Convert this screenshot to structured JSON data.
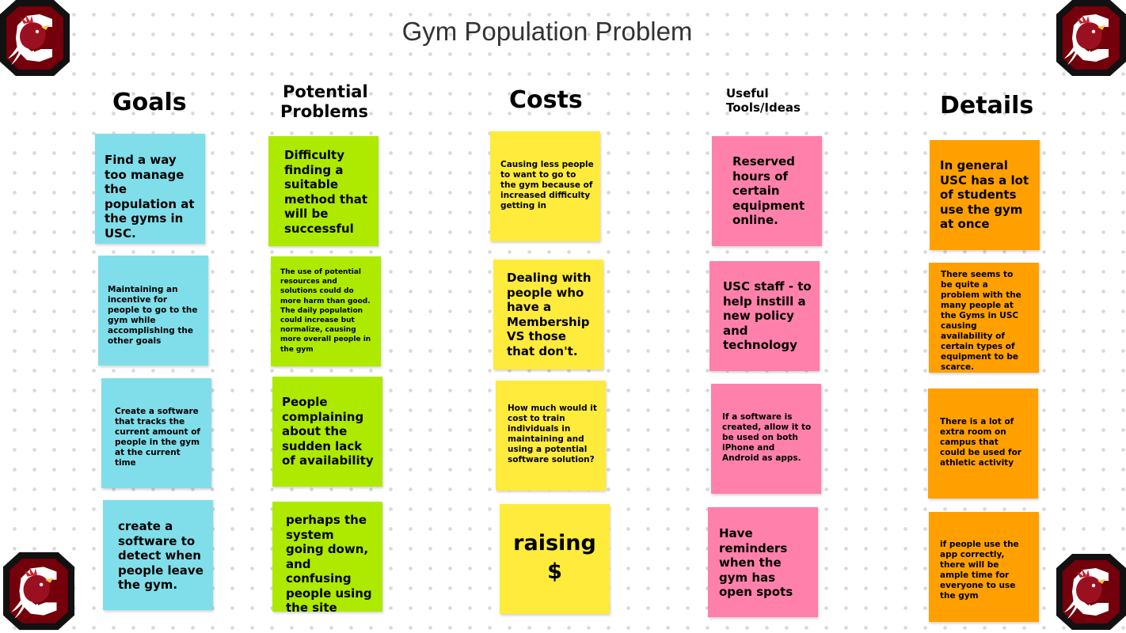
{
  "board": {
    "title": "Gym Population Problem"
  },
  "colors": {
    "blue": "#80deea",
    "green": "#aeea00",
    "yellow": "#ffeb3b",
    "pink": "#ff80ab",
    "orange": "#ffa000",
    "garnet": "#73000a"
  },
  "columns": {
    "goals": {
      "heading": "Goals",
      "notes": [
        "Find a way too manage the population at the gyms in USC.",
        "Maintaining an incentive for people to go to the gym while accomplishing the other goals",
        "Create a software that tracks the current amount of people in the gym at the current time",
        "create a software to detect when people leave the gym."
      ]
    },
    "problems": {
      "heading_line1": "Potential",
      "heading_line2": "Problems",
      "notes": [
        "Difficulty finding a suitable method that will be successful",
        "The use of potential resources and solutions could do more harm than good. The daily population could increase but normalize, causing more overall people in the gym",
        "People complaining about the sudden lack of availability",
        "perhaps the system going down, and confusing people using the site"
      ]
    },
    "costs": {
      "heading": "Costs",
      "notes": [
        "Causing less people to want to go to the gym because of increased difficulty getting in",
        "Dealing with people who have a Membership VS those that don't.",
        "How much would it cost to train individuals in maintaining and using a potential software solution?",
        "raising $"
      ]
    },
    "tools": {
      "heading_line1": "Useful",
      "heading_line2": "Tools/Ideas",
      "notes": [
        "Reserved hours of certain equipment online.",
        "USC staff - to help instill a new policy and technology",
        "If a software is created, allow it to be used on both iPhone and Android as apps.",
        "Have reminders when the gym has open spots"
      ]
    },
    "details": {
      "heading": "Details",
      "notes": [
        "In general USC has a lot of students use the gym at once",
        "There seems to be quite a problem with the many people at the Gyms in USC causing availability of certain types of equipment to be scarce.",
        "There is a lot of extra room on campus that could be used for athletic activity",
        "if people use the app correctly, there will be ample time for everyone to use the gym"
      ]
    }
  },
  "logos": {
    "icon": "gamecock-logo-icon"
  }
}
